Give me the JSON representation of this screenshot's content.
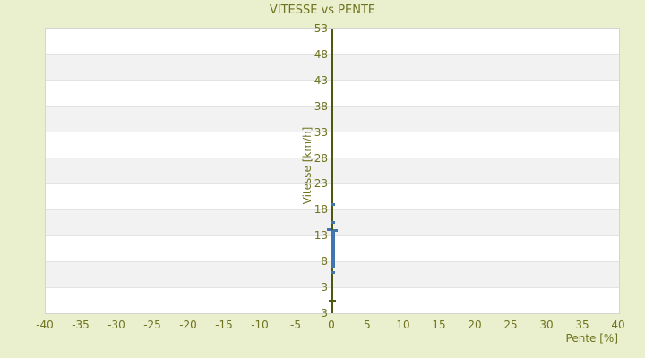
{
  "title": "VITESSE vs PENTE",
  "colors": {
    "background": "#eaefcd",
    "text": "#6e741f",
    "axis_line": "#4c5a11",
    "point": "#4076ad",
    "band_light": "#ffffff",
    "band_dark": "#f2f2f2",
    "grid_line": "#e2e2e2",
    "plot_border": "#d4d4d4"
  },
  "chart_data": {
    "type": "scatter",
    "title": "VITESSE vs PENTE",
    "xlabel": "Pente [%]",
    "ylabel": "Vitesse [km/h]",
    "xlim": [
      -40,
      40
    ],
    "ylim": [
      3,
      53
    ],
    "grid": "horizontal-bands",
    "legend": "none",
    "x_tick_labels": [
      "-40",
      "-35",
      "-30",
      "-25",
      "-20",
      "-15",
      "-10",
      "-5",
      "0",
      "5",
      "10",
      "15",
      "20",
      "25",
      "30",
      "35",
      "40"
    ],
    "y_tick_labels": [
      "53",
      "48",
      "43",
      "38",
      "33",
      "28",
      "23",
      "18",
      "13",
      "8",
      "3",
      "3"
    ],
    "y_axis_at_x": 0,
    "axis_tick_y_value": 0.5,
    "points": [
      {
        "x": 0,
        "y": 19.0
      },
      {
        "x": 0,
        "y": 15.6
      },
      {
        "x": -0.4,
        "y": 14.2
      },
      {
        "x": 0.4,
        "y": 14.0
      },
      {
        "x": 0,
        "y": 13.8
      },
      {
        "x": 0,
        "y": 13.5
      },
      {
        "x": 0,
        "y": 13.2
      },
      {
        "x": 0,
        "y": 12.9
      },
      {
        "x": 0,
        "y": 12.6
      },
      {
        "x": 0,
        "y": 12.3
      },
      {
        "x": 0,
        "y": 12.0
      },
      {
        "x": 0,
        "y": 11.7
      },
      {
        "x": 0,
        "y": 11.4
      },
      {
        "x": 0,
        "y": 11.1
      },
      {
        "x": 0,
        "y": 10.8
      },
      {
        "x": 0,
        "y": 10.5
      },
      {
        "x": 0,
        "y": 10.2
      },
      {
        "x": 0,
        "y": 9.9
      },
      {
        "x": 0,
        "y": 9.6
      },
      {
        "x": 0,
        "y": 9.3
      },
      {
        "x": 0,
        "y": 9.0
      },
      {
        "x": 0,
        "y": 8.7
      },
      {
        "x": 0,
        "y": 8.4
      },
      {
        "x": 0,
        "y": 8.1
      },
      {
        "x": 0,
        "y": 7.6
      },
      {
        "x": 0,
        "y": 7.0
      },
      {
        "x": 0,
        "y": 5.8
      }
    ]
  }
}
